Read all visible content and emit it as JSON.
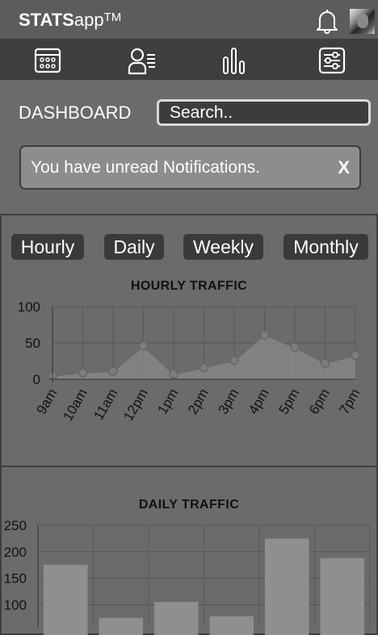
{
  "app": {
    "name_bold": "STATS",
    "name_rest": "app",
    "trademark": "TM"
  },
  "nav": [
    {
      "name": "calendar-icon"
    },
    {
      "name": "user-list-icon"
    },
    {
      "name": "bar-chart-icon"
    },
    {
      "name": "sliders-icon"
    }
  ],
  "dashboard": {
    "title": "DASHBOARD",
    "search_placeholder": "Search..",
    "notification": "You have unread Notifications.",
    "close_label": "X"
  },
  "tabs": [
    "Hourly",
    "Daily",
    "Weekly",
    "Monthly"
  ],
  "colors": {
    "background": "#6b6b6b",
    "header": "#5c5c5c",
    "navbar": "#3e3e3e",
    "tab": "#3a3a3a",
    "notification": "#8d8d8d",
    "series": "#8a8a8a"
  },
  "chart_data": [
    {
      "type": "area",
      "title": "HOURLY TRAFFIC",
      "categories": [
        "9am",
        "10am",
        "11am",
        "12pm",
        "1pm",
        "2pm",
        "3pm",
        "4pm",
        "5pm",
        "6pm",
        "7pm"
      ],
      "values": [
        5,
        9,
        11,
        46,
        7,
        16,
        26,
        61,
        44,
        22,
        33
      ],
      "ylim": [
        0,
        100
      ],
      "yticks": [
        0,
        50,
        100
      ],
      "grid": true
    },
    {
      "type": "bar",
      "title": "DAILY TRAFFIC",
      "values": [
        175,
        75,
        105,
        78,
        225,
        188
      ],
      "ylim": [
        0,
        250
      ],
      "yticks": [
        100,
        150,
        200,
        250
      ],
      "grid": true
    }
  ]
}
